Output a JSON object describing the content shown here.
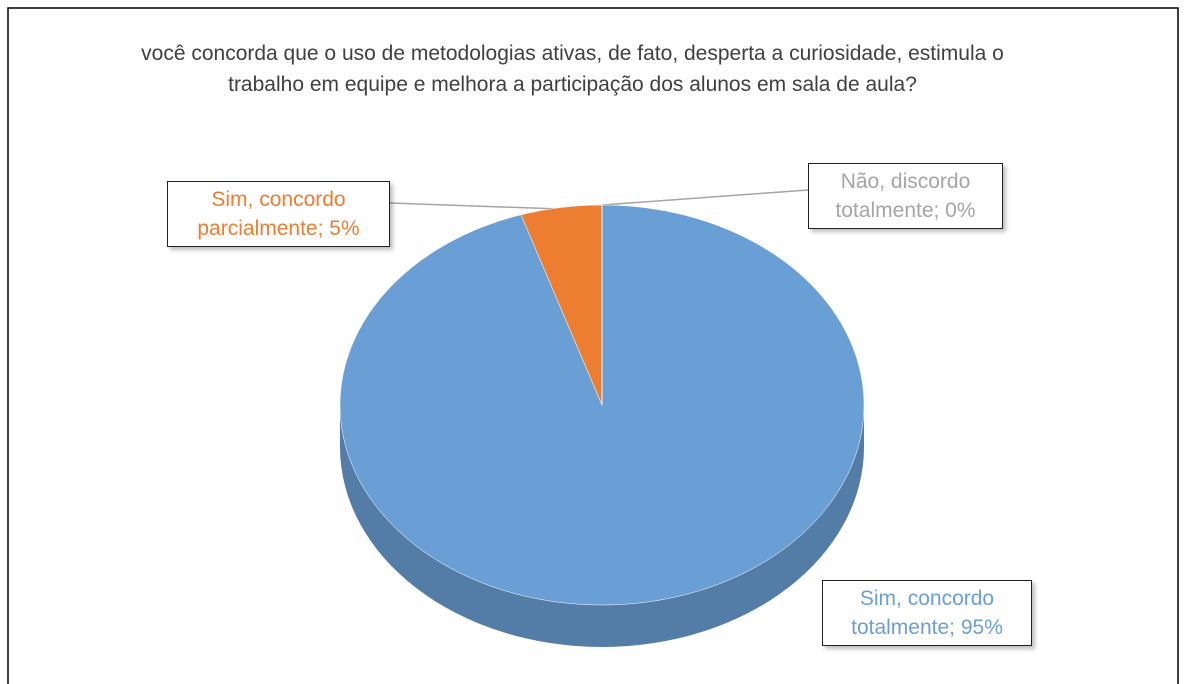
{
  "chart_data": {
    "type": "pie",
    "title": "você concorda que o uso de metodologias ativas, de fato, desperta a curiosidade, estimula o trabalho em equipe e melhora a participação dos alunos em sala de aula?",
    "values": [
      95,
      5,
      0
    ],
    "value_labels": [
      "Sim, concordo totalmente; 95%",
      "Sim, concordo parcialmente; 5%",
      "Não, discordo totalmente; 0%"
    ],
    "colors": [
      "#6a9fd6",
      "#ed7d31",
      "#a5a5a5"
    ]
  }
}
